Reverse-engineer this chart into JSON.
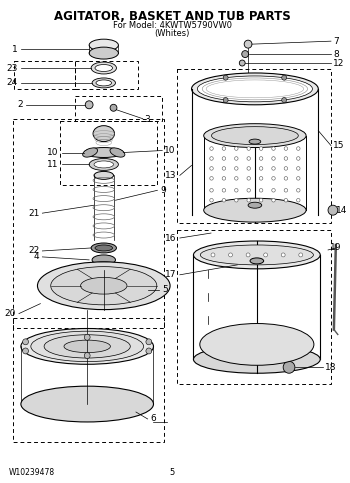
{
  "title": "AGITATOR, BASKET AND TUB PARTS",
  "subtitle": "For Model: 4KWTW5790VW0",
  "subtitle2": "(Whites)",
  "footer_left": "W10239478",
  "footer_center": "5",
  "bg_color": "#ffffff",
  "title_fontsize": 8.5,
  "subtitle_fontsize": 6.0,
  "label_fontsize": 6.5
}
